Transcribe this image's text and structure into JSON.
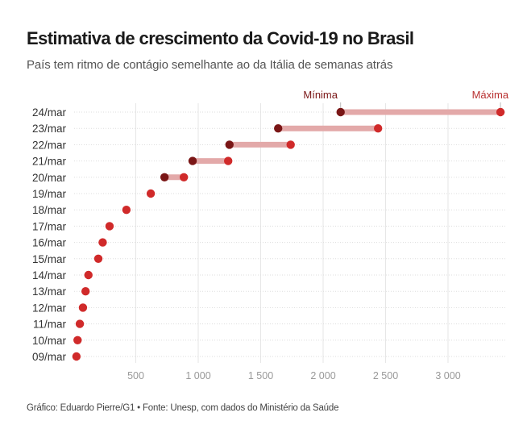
{
  "header": {
    "title": "Estimativa de crescimento da Covid-19 no Brasil",
    "subtitle": "País tem ritmo de contágio semelhante ao da Itália de semanas atrás"
  },
  "footer": {
    "credit": "Gráfico: Eduardo Pierre/G1 • Fonte: Unesp, com dados do Ministério da Saúde"
  },
  "colors": {
    "min_dot": "#7a1616",
    "max_dot": "#d02a2a",
    "range_bar": "#e3a9a9",
    "annotation_min": "#7a1616",
    "annotation_max": "#b83030",
    "grid": "#e6e6e6"
  },
  "chart_data": {
    "type": "dumbbell",
    "title": "Estimativa de crescimento da Covid-19 no Brasil",
    "subtitle": "País tem ritmo de contágio semelhante ao da Itália de semanas atrás",
    "xlabel": "",
    "ylabel": "",
    "xlim": [
      0,
      3450
    ],
    "x_ticks": [
      500,
      1000,
      1500,
      2000,
      2500,
      3000
    ],
    "x_tick_labels": [
      "500",
      "1 000",
      "1 500",
      "2 000",
      "2 500",
      "3 000"
    ],
    "grid": true,
    "annotations": [
      {
        "label": "Mínima",
        "row": "24/mar",
        "series": "min"
      },
      {
        "label": "Máxima",
        "row": "24/mar",
        "series": "max"
      }
    ],
    "categories": [
      "24/mar",
      "23/mar",
      "22/mar",
      "21/mar",
      "20/mar",
      "19/mar",
      "18/mar",
      "17/mar",
      "16/mar",
      "15/mar",
      "14/mar",
      "13/mar",
      "12/mar",
      "11/mar",
      "10/mar",
      "09/mar"
    ],
    "series": [
      {
        "name": "Mínima",
        "values": [
          2140,
          1640,
          1250,
          955,
          730,
          620,
          425,
          290,
          235,
          200,
          121,
          98,
          77,
          52,
          34,
          25
        ]
      },
      {
        "name": "Máxima",
        "values": [
          3420,
          2440,
          1740,
          1240,
          885,
          null,
          null,
          null,
          null,
          null,
          null,
          null,
          null,
          null,
          null,
          null
        ]
      }
    ]
  }
}
